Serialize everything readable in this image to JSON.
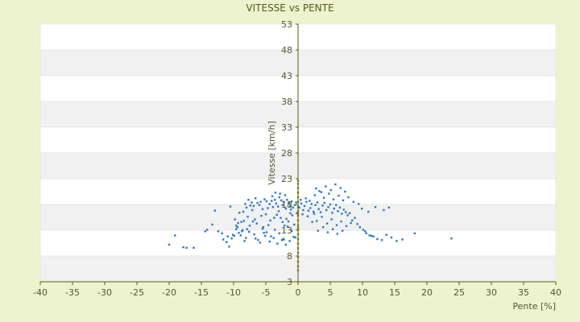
{
  "chart_data": {
    "type": "scatter",
    "title": "VITESSE vs PENTE",
    "xlabel": "Pente [%]",
    "ylabel": "Vitesse [km/h]",
    "xlim": [
      -40,
      40
    ],
    "ylim": [
      3,
      53
    ],
    "x_ticks": [
      "-40",
      "-35",
      "-30",
      "-25",
      "-20",
      "-15",
      "-10",
      "-5",
      "0",
      "5",
      "10",
      "15",
      "20",
      "25",
      "30",
      "35",
      "40"
    ],
    "y_ticks": [
      "3",
      "8",
      "13",
      "18",
      "23",
      "28",
      "33",
      "38",
      "43",
      "48",
      "53"
    ],
    "grid": true,
    "legend": "none",
    "colors": {
      "background": "#eef3cf",
      "plot_band_light": "#ffffff",
      "plot_band_dark": "#f1f1f1",
      "axis": "#5a5a10",
      "points": "#2a78c8",
      "zero_points": "#9a8a20"
    },
    "series": [
      {
        "x": [
          -20.0,
          -19.1,
          -17.8,
          -17.3,
          -16.2,
          -14.4,
          -14.1,
          -13.3,
          -12.4,
          -11.6,
          -11.1,
          -10.7,
          -10.3,
          -9.9,
          -9.6,
          -9.2,
          -8.8,
          -8.5,
          -8.2,
          -8.0,
          -7.7,
          -7.4,
          -7.2,
          -6.9,
          -6.6,
          -6.3,
          -6.0,
          -5.8,
          -5.5,
          -5.2,
          -4.9,
          -4.7,
          -4.4,
          -4.1,
          -3.9,
          -3.6,
          -3.4,
          -3.1,
          -2.9,
          -2.6,
          -2.4,
          -2.2,
          -1.9,
          -1.7,
          -1.4,
          -1.2,
          -1.0,
          -0.8,
          -0.5,
          -0.3,
          -9.8,
          -9.1,
          -8.4,
          -7.8,
          -7.1,
          -6.4,
          -5.7,
          -5.0,
          -4.3,
          -3.7,
          -3.0,
          -2.4,
          -1.8,
          -1.2,
          -0.6,
          -10.1,
          -9.4,
          -8.7,
          -8.1,
          -7.5,
          -6.8,
          -6.2,
          -5.5,
          -4.9,
          -4.2,
          -3.6,
          -2.9,
          -2.3,
          -1.6,
          -1.0,
          -0.4,
          -11.8,
          -10.9,
          -9.6,
          -8.9,
          -8.3,
          -7.6,
          -6.6,
          -5.9,
          -5.1,
          -4.4,
          -3.8,
          -3.2,
          -2.5,
          -1.9,
          -1.3,
          -0.7,
          -9.3,
          -7.9,
          -6.7,
          -5.4,
          -4.6,
          -3.3,
          -2.7,
          -2.1,
          -1.5,
          -0.9,
          -2.8,
          -2.0,
          -4.0,
          -3.5,
          -1.1,
          -0.2,
          -8.6,
          -5.3,
          -2.2,
          -12.9,
          -10.5,
          -7.0
        ],
        "y": [
          10.2,
          12.0,
          9.7,
          9.6,
          9.6,
          12.8,
          13.1,
          14.1,
          12.8,
          11.2,
          10.7,
          9.8,
          11.4,
          11.9,
          13.9,
          12.5,
          14.6,
          16.6,
          18.1,
          17.4,
          18.9,
          17.8,
          18.4,
          17.7,
          19.2,
          18.3,
          17.9,
          18.5,
          17.1,
          19.0,
          18.6,
          17.3,
          18.1,
          18.7,
          17.5,
          18.9,
          18.2,
          17.6,
          19.4,
          18.8,
          17.9,
          18.5,
          17.2,
          18.9,
          18.3,
          17.7,
          18.6,
          17.4,
          17.9,
          18.4,
          15.1,
          16.4,
          14.8,
          15.6,
          16.9,
          14.3,
          15.8,
          16.1,
          14.9,
          15.4,
          16.7,
          14.6,
          15.2,
          16.3,
          14.1,
          12.1,
          13.6,
          12.8,
          11.5,
          13.9,
          12.2,
          11.1,
          13.3,
          12.6,
          11.8,
          13.1,
          12.4,
          11.3,
          13.7,
          12.9,
          11.6,
          12.4,
          11.8,
          13.2,
          12.0,
          10.9,
          12.7,
          11.4,
          10.6,
          11.9,
          10.8,
          11.5,
          10.4,
          11.1,
          10.2,
          10.9,
          11.7,
          14.4,
          13.2,
          15.1,
          13.6,
          14.0,
          16.0,
          15.4,
          13.9,
          14.7,
          15.9,
          20.1,
          19.8,
          19.6,
          20.3,
          17.0,
          16.3,
          13.0,
          12.5,
          11.2,
          16.8,
          17.6,
          14.7
        ],
        "name": ""
      },
      {
        "x": [
          0.2,
          0.5,
          0.8,
          1.0,
          1.3,
          1.6,
          1.9,
          2.1,
          2.4,
          2.7,
          3.0,
          3.2,
          3.5,
          3.8,
          4.1,
          4.4,
          4.7,
          5.0,
          5.3,
          5.6,
          5.9,
          6.2,
          6.5,
          6.8,
          7.1,
          7.4,
          7.7,
          8.0,
          8.4,
          8.8,
          9.2,
          9.6,
          10.1,
          10.6,
          11.1,
          11.7,
          12.3,
          13.0,
          13.7,
          14.5,
          15.3,
          16.2,
          18.1,
          23.8,
          2.6,
          3.3,
          4.0,
          4.8,
          5.5,
          6.3,
          7.0,
          7.8,
          8.6,
          9.4,
          2.9,
          3.7,
          4.5,
          5.2,
          6.0,
          6.7,
          7.5,
          8.2,
          3.1,
          3.9,
          4.6,
          5.4,
          6.1,
          6.9,
          2.8,
          3.6,
          4.3,
          5.1,
          5.8,
          6.6,
          7.3,
          1.5,
          2.2,
          9.9,
          10.9,
          12.0,
          13.3,
          14.1,
          10.4,
          11.4,
          1.2,
          1.8,
          2.5,
          0.4,
          0.7
        ],
        "y": [
          17.4,
          18.2,
          16.9,
          17.7,
          18.5,
          16.8,
          17.3,
          18.1,
          16.6,
          17.9,
          18.4,
          17.1,
          16.5,
          17.8,
          18.3,
          16.9,
          17.5,
          18.0,
          16.4,
          17.2,
          17.9,
          16.7,
          17.4,
          16.2,
          17.0,
          16.5,
          15.9,
          16.3,
          14.9,
          15.4,
          14.2,
          13.6,
          13.1,
          12.4,
          12.0,
          11.8,
          11.3,
          11.1,
          12.1,
          11.6,
          10.9,
          11.2,
          12.4,
          11.4,
          19.8,
          20.6,
          19.3,
          20.1,
          19.0,
          19.7,
          18.8,
          19.4,
          18.5,
          18.1,
          14.8,
          15.6,
          14.3,
          15.1,
          14.0,
          14.7,
          13.8,
          14.4,
          12.9,
          13.6,
          12.6,
          13.2,
          12.3,
          12.9,
          21.1,
          20.4,
          21.5,
          20.8,
          21.9,
          21.2,
          20.5,
          15.7,
          14.6,
          17.2,
          16.6,
          17.5,
          16.9,
          17.4,
          12.8,
          11.9,
          19.2,
          18.7,
          16.2,
          18.9,
          16.1
        ]
      },
      {
        "x": [
          0,
          0,
          0,
          0,
          0,
          0,
          0,
          0,
          0,
          0,
          0,
          0,
          0,
          0,
          0,
          0,
          0,
          0,
          0,
          0,
          0,
          0,
          0
        ],
        "y": [
          5.2,
          6.0,
          6.9,
          7.8,
          8.6,
          9.5,
          10.4,
          11.3,
          12.2,
          13.1,
          14.0,
          14.9,
          15.8,
          16.7,
          17.6,
          18.5,
          19.4,
          20.3,
          21.2,
          22.0,
          22.6,
          13.5,
          16.2
        ]
      }
    ]
  }
}
